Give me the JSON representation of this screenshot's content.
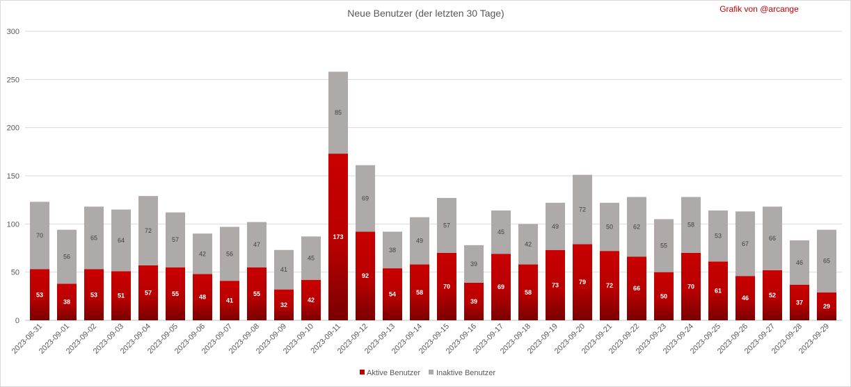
{
  "chart_data": {
    "type": "bar",
    "stacked": true,
    "title": "Neue Benutzer (der letzten 30 Tage)",
    "credit": "Grafik von @arcange",
    "xlabel": "",
    "ylabel": "",
    "ylim": [
      0,
      300
    ],
    "yticks": [
      0,
      50,
      100,
      150,
      200,
      250,
      300
    ],
    "grid": true,
    "legend_position": "bottom",
    "categories": [
      "2023-08-31",
      "2023-09-01",
      "2023-09-02",
      "2023-09-03",
      "2023-09-04",
      "2023-09-05",
      "2023-09-06",
      "2023-09-07",
      "2023-09-08",
      "2023-09-09",
      "2023-09-10",
      "2023-09-11",
      "2023-09-12",
      "2023-09-13",
      "2023-09-14",
      "2023-09-15",
      "2023-09-16",
      "2023-09-17",
      "2023-09-18",
      "2023-09-19",
      "2023-09-20",
      "2023-09-21",
      "2023-09-22",
      "2023-09-23",
      "2023-09-24",
      "2023-09-25",
      "2023-09-26",
      "2023-09-27",
      "2023-09-28",
      "2023-09-29"
    ],
    "series": [
      {
        "name": "Aktive Benutzer",
        "color": "#c00000",
        "values": [
          53,
          38,
          53,
          51,
          57,
          55,
          48,
          41,
          55,
          32,
          42,
          173,
          92,
          54,
          58,
          70,
          39,
          69,
          58,
          73,
          79,
          72,
          66,
          50,
          70,
          61,
          46,
          52,
          37,
          29
        ]
      },
      {
        "name": "Inaktive Benutzer",
        "color": "#aeaaaa",
        "values": [
          70,
          56,
          65,
          64,
          72,
          57,
          42,
          56,
          47,
          41,
          45,
          85,
          69,
          38,
          49,
          57,
          39,
          45,
          42,
          49,
          72,
          50,
          62,
          55,
          58,
          53,
          67,
          66,
          46,
          65
        ]
      }
    ]
  }
}
